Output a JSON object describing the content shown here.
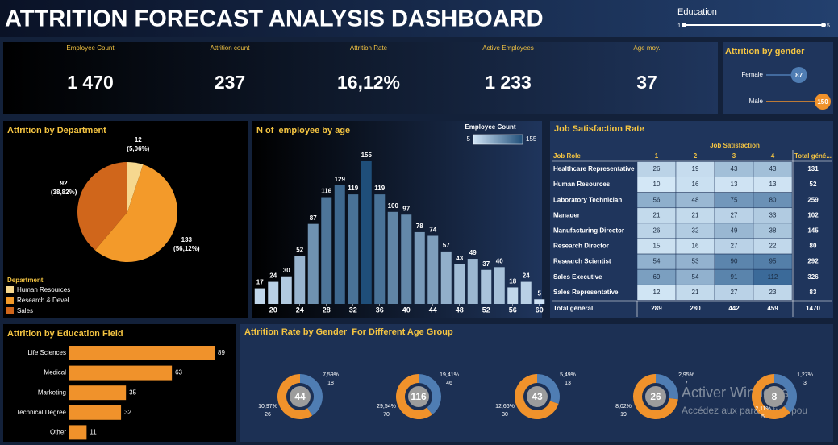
{
  "header": {
    "title": "ATTRITION FORECAST ANALYSIS DASHBOARD"
  },
  "slicer": {
    "label": "Education",
    "min": 1,
    "max": 5
  },
  "kpis": [
    {
      "label": "Employee Count",
      "value": 1470,
      "value_label": "1 470"
    },
    {
      "label": "Attrition count",
      "value": 237
    },
    {
      "label": "Attrition Rate",
      "value": 16.12,
      "value_label": "16,12%"
    },
    {
      "label": "Active Employees",
      "value": 1233,
      "value_label": "1 233"
    },
    {
      "label": "Age moy.",
      "value": 37
    }
  ],
  "chart_data": [
    {
      "type": "lollipop",
      "title": "Attrition by gender",
      "categories": [
        "Female",
        "Male"
      ],
      "values": [
        87,
        150
      ],
      "colors": [
        "#4f7db3",
        "#f0922b"
      ]
    },
    {
      "type": "pie",
      "title": "Attrition by Department",
      "categories": [
        "Human Resources",
        "Research & Devel",
        "Sales"
      ],
      "values": [
        12,
        133,
        92
      ],
      "percent_labels": [
        "(5,06%)",
        "(56,12%)",
        "(38,82%)"
      ],
      "legend_title": "Department",
      "colors": [
        "#f6d88f",
        "#f39a2a",
        "#d0661b"
      ]
    },
    {
      "type": "bar",
      "title": "N of  employee by age",
      "x": [
        18,
        20,
        22,
        24,
        26,
        28,
        30,
        32,
        34,
        36,
        38,
        40,
        42,
        44,
        46,
        48,
        50,
        52,
        54,
        56,
        58,
        60
      ],
      "values": [
        17,
        24,
        30,
        52,
        87,
        116,
        129,
        119,
        155,
        119,
        100,
        97,
        78,
        74,
        57,
        43,
        49,
        37,
        40,
        18,
        24,
        5
      ],
      "xlim": [
        17,
        61
      ],
      "xticks": [
        20,
        24,
        28,
        32,
        36,
        40,
        44,
        48,
        52,
        56,
        60
      ],
      "colorscale": {
        "title": "Employee Count",
        "min": 5,
        "max": 155,
        "colors": [
          "#cfe3f5",
          "#1f4e79"
        ]
      }
    },
    {
      "type": "hbar",
      "title": "Attrition by Education Field",
      "categories": [
        "Life Sciences",
        "Medical",
        "Marketing",
        "Technical Degree",
        "Other"
      ],
      "values": [
        89,
        63,
        35,
        32,
        11
      ],
      "color": "#f0922b"
    },
    {
      "type": "donut",
      "title": "Attrition Rate by Gender  For Different Age Group",
      "totals": [
        44,
        116,
        43,
        26,
        8
      ],
      "series": [
        {
          "color": "#4f7db3",
          "values": [
            18,
            46,
            13,
            7,
            3
          ],
          "percent_labels": [
            "7,59%",
            "19,41%",
            "5,49%",
            "2,95%",
            "1,27%"
          ]
        },
        {
          "color": "#f0922b",
          "values": [
            26,
            70,
            30,
            19,
            5
          ],
          "percent_labels": [
            "10,97%",
            "29,54%",
            "12,66%",
            "8,02%",
            "2,11%"
          ]
        }
      ]
    }
  ],
  "table": {
    "title": "Job Satisfaction Rate",
    "group_header": "Job Satisfaction",
    "columns": [
      "Job Role",
      "1",
      "2",
      "3",
      "4",
      "Total géné..."
    ],
    "rows": [
      [
        "Healthcare Representative",
        26,
        19,
        43,
        43,
        131
      ],
      [
        "Human Resources",
        10,
        16,
        13,
        13,
        52
      ],
      [
        "Laboratory Technician",
        56,
        48,
        75,
        80,
        259
      ],
      [
        "Manager",
        21,
        21,
        27,
        33,
        102
      ],
      [
        "Manufacturing Director",
        26,
        32,
        49,
        38,
        145
      ],
      [
        "Research Director",
        15,
        16,
        27,
        22,
        80
      ],
      [
        "Research Scientist",
        54,
        53,
        90,
        95,
        292
      ],
      [
        "Sales Executive",
        69,
        54,
        91,
        112,
        326
      ],
      [
        "Sales Representative",
        12,
        21,
        27,
        23,
        83
      ],
      [
        "Total général",
        289,
        280,
        442,
        459,
        1470
      ]
    ]
  },
  "watermark": {
    "title": "Activer Windows",
    "subtitle": "Accédez aux paramètres pou"
  }
}
